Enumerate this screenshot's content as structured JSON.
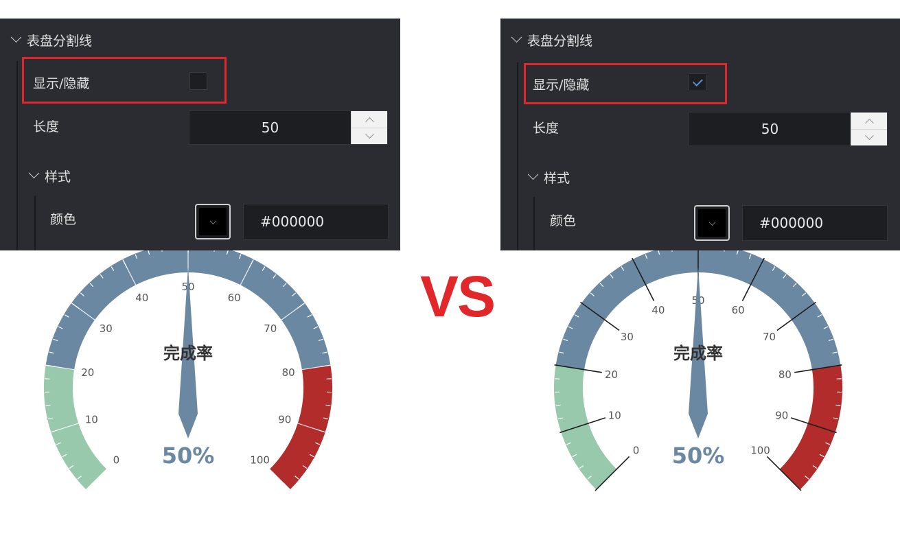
{
  "comparison_label": "VS",
  "colors": {
    "highlight": "#e2272b",
    "gauge_blue": "#6b88a2",
    "gauge_green": "#98c9ad",
    "gauge_red": "#b22c2c",
    "panel_bg": "#2b2c31"
  },
  "panels": [
    {
      "section_title": "表盘分割线",
      "show_hide_label": "显示/隐藏",
      "checked": false,
      "length_label": "长度",
      "length_value": "50",
      "style_title": "样式",
      "color_label": "颜色",
      "color_hex": "#000000"
    },
    {
      "section_title": "表盘分割线",
      "show_hide_label": "显示/隐藏",
      "checked": true,
      "length_label": "长度",
      "length_value": "50",
      "style_title": "样式",
      "color_label": "颜色",
      "color_hex": "#000000"
    }
  ],
  "gauges": [
    {
      "title": "完成率",
      "value": 50,
      "value_label": "50%",
      "min": 0,
      "max": 100,
      "tick_labels": [
        "0",
        "10",
        "20",
        "30",
        "40",
        "50",
        "60",
        "70",
        "80",
        "90",
        "100"
      ],
      "bands": [
        {
          "from": 0,
          "to": 0.2,
          "color": "#98c9ad"
        },
        {
          "from": 0.2,
          "to": 0.8,
          "color": "#6b88a2"
        },
        {
          "from": 0.8,
          "to": 1.0,
          "color": "#b22c2c"
        }
      ],
      "split_lines_shown": false
    },
    {
      "title": "完成率",
      "value": 50,
      "value_label": "50%",
      "min": 0,
      "max": 100,
      "tick_labels": [
        "0",
        "10",
        "20",
        "30",
        "40",
        "50",
        "60",
        "70",
        "80",
        "90",
        "100"
      ],
      "bands": [
        {
          "from": 0,
          "to": 0.2,
          "color": "#98c9ad"
        },
        {
          "from": 0.2,
          "to": 0.8,
          "color": "#6b88a2"
        },
        {
          "from": 0.8,
          "to": 1.0,
          "color": "#b22c2c"
        }
      ],
      "split_lines_shown": true
    }
  ]
}
